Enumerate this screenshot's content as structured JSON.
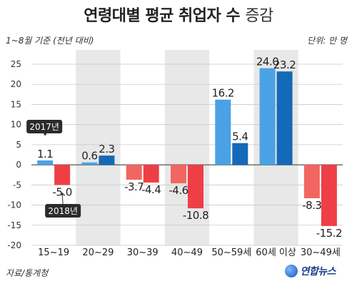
{
  "title_main": "연령대별 평균 취업자 수",
  "title_suffix": "증감",
  "subtitle": "1~8월 기준 (전년 대비)",
  "unit": "단위: 만 명",
  "source": "자료/통계청",
  "logo_text": "연합뉴스",
  "colors": {
    "s2017": "#4aa2e4",
    "s2017_pos_dark": "#1b76c6",
    "s2018_pos": "#1469b8",
    "s2018_neg": "#ee3f46",
    "s2017_neg": "#f26661",
    "band": "#e8e8e8",
    "tag": "#2b2b2b"
  },
  "chart_data": {
    "type": "bar",
    "title": "연령대별 평균 취업자 수 증감",
    "categories": [
      "15~19",
      "20~29",
      "30~39",
      "40~49",
      "50~59세",
      "60세 이상",
      "30~49세"
    ],
    "series": [
      {
        "name": "2017년",
        "values": [
          1.1,
          0.6,
          -3.7,
          -4.6,
          16.2,
          24.0,
          -8.3
        ]
      },
      {
        "name": "2018년",
        "values": [
          -5.0,
          2.3,
          -4.4,
          -10.8,
          5.4,
          23.2,
          -15.2
        ]
      }
    ],
    "value_labels": [
      [
        "1.1",
        "0.6",
        "-3.7",
        "-4.6",
        "16.2",
        "24.0",
        "-8.3"
      ],
      [
        "-5.0",
        "2.3",
        "-4.4",
        "-10.8",
        "5.4",
        "23.2",
        "-15.2"
      ]
    ],
    "ylim": [
      -20,
      25
    ],
    "yticks": [
      "25",
      "20",
      "15",
      "10",
      "5",
      "0",
      "-5",
      "-10",
      "-15",
      "-20"
    ],
    "grid": true,
    "tags": [
      "2017년",
      "2018년"
    ]
  }
}
